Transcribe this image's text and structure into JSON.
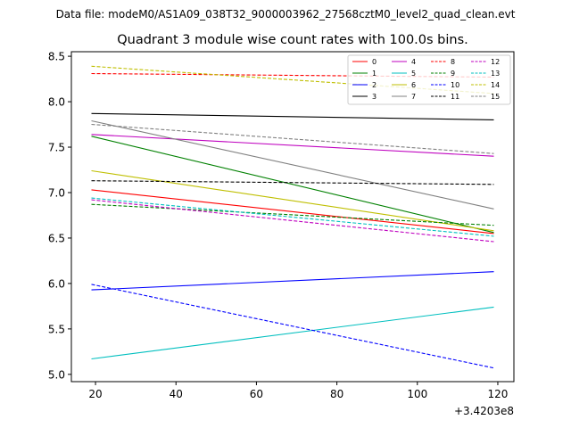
{
  "suptitle": "Data file: modeM0/AS1A09_038T32_9000003962_27568cztM0_level2_quad_clean.evt",
  "chart_data": {
    "type": "line",
    "title": "Quadrant 3 module wise count rates with 100.0s bins.",
    "xlabel": "",
    "ylabel": "",
    "x_offset_label": "+3.4203e8",
    "xlim": [
      14,
      124
    ],
    "ylim": [
      4.92,
      8.55
    ],
    "xticks": [
      20,
      40,
      60,
      80,
      100,
      120
    ],
    "yticks": [
      5.0,
      5.5,
      6.0,
      6.5,
      7.0,
      7.5,
      8.0,
      8.5
    ],
    "ytick_labels": [
      "5.0",
      "5.5",
      "6.0",
      "6.5",
      "7.0",
      "7.5",
      "8.0",
      "8.5"
    ],
    "x": [
      19,
      119
    ],
    "legend_position": "top-right",
    "legend_columns": 4,
    "series": [
      {
        "name": "0",
        "values": [
          7.03,
          6.55
        ],
        "color": "#ff0000",
        "style": "solid"
      },
      {
        "name": "1",
        "values": [
          7.62,
          6.56
        ],
        "color": "#008000",
        "style": "solid"
      },
      {
        "name": "2",
        "values": [
          5.93,
          6.13
        ],
        "color": "#0000ff",
        "style": "solid"
      },
      {
        "name": "3",
        "values": [
          7.87,
          7.8
        ],
        "color": "#000000",
        "style": "solid"
      },
      {
        "name": "4",
        "values": [
          7.64,
          7.4
        ],
        "color": "#bf00bf",
        "style": "solid"
      },
      {
        "name": "5",
        "values": [
          5.17,
          5.74
        ],
        "color": "#00bfbf",
        "style": "solid"
      },
      {
        "name": "6",
        "values": [
          7.24,
          6.58
        ],
        "color": "#bfbf00",
        "style": "solid"
      },
      {
        "name": "7",
        "values": [
          7.79,
          6.82
        ],
        "color": "#808080",
        "style": "solid"
      },
      {
        "name": "8",
        "values": [
          8.31,
          8.27
        ],
        "color": "#ff0000",
        "style": "dashed"
      },
      {
        "name": "9",
        "values": [
          6.87,
          6.64
        ],
        "color": "#008000",
        "style": "dashed"
      },
      {
        "name": "10",
        "values": [
          5.99,
          5.07
        ],
        "color": "#0000ff",
        "style": "dashed"
      },
      {
        "name": "11",
        "values": [
          7.13,
          7.09
        ],
        "color": "#000000",
        "style": "dashed"
      },
      {
        "name": "12",
        "values": [
          6.92,
          6.46
        ],
        "color": "#bf00bf",
        "style": "dashed"
      },
      {
        "name": "13",
        "values": [
          6.94,
          6.52
        ],
        "color": "#00bfbf",
        "style": "dashed"
      },
      {
        "name": "14",
        "values": [
          8.39,
          8.09
        ],
        "color": "#bfbf00",
        "style": "dashed"
      },
      {
        "name": "15",
        "values": [
          7.75,
          7.43
        ],
        "color": "#808080",
        "style": "dashed"
      }
    ]
  }
}
